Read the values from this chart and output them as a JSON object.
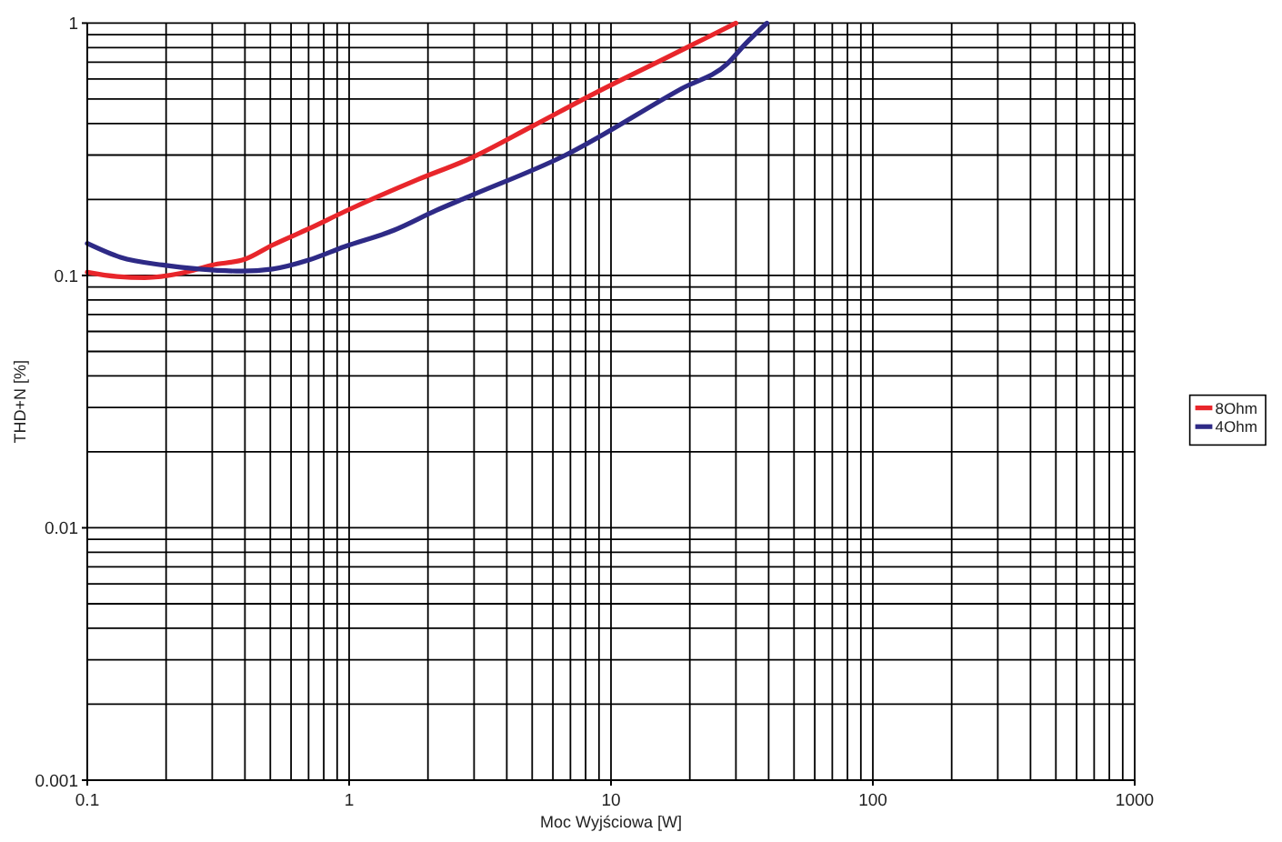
{
  "chart_data": {
    "type": "line",
    "xlabel": "Moc Wyjściowa [W]",
    "ylabel": "THD+N [%]",
    "log": "xy",
    "xlim": [
      0.1,
      1000
    ],
    "ylim": [
      0.001,
      1
    ],
    "xticks": [
      0.1,
      {
        "value": 0.2,
        "label": null
      },
      {
        "value": 0.3,
        "label": null
      },
      {
        "value": 0.4,
        "label": null
      },
      {
        "value": 0.5,
        "label": null
      },
      {
        "value": 0.6,
        "label": null
      },
      {
        "value": 0.7,
        "label": null
      },
      {
        "value": 0.8,
        "label": null
      },
      {
        "value": 0.9,
        "label": null
      },
      1,
      {
        "value": 2,
        "label": null
      },
      {
        "value": 3,
        "label": null
      },
      {
        "value": 4,
        "label": null
      },
      {
        "value": 5,
        "label": null
      },
      {
        "value": 6,
        "label": null
      },
      {
        "value": 7,
        "label": null
      },
      {
        "value": 8,
        "label": null
      },
      {
        "value": 9,
        "label": null
      },
      10,
      {
        "value": 20,
        "label": null
      },
      {
        "value": 30,
        "label": null
      },
      {
        "value": 40,
        "label": null
      },
      {
        "value": 50,
        "label": null
      },
      {
        "value": 60,
        "label": null
      },
      {
        "value": 70,
        "label": null
      },
      {
        "value": 80,
        "label": null
      },
      {
        "value": 90,
        "label": null
      },
      100,
      {
        "value": 200,
        "label": null
      },
      {
        "value": 300,
        "label": null
      },
      {
        "value": 400,
        "label": null
      },
      {
        "value": 500,
        "label": null
      },
      {
        "value": 600,
        "label": null
      },
      {
        "value": 700,
        "label": null
      },
      {
        "value": 800,
        "label": null
      },
      {
        "value": 900,
        "label": null
      },
      1000
    ],
    "yticks": [
      0.001,
      {
        "value": 0.002,
        "label": null
      },
      {
        "value": 0.003,
        "label": null
      },
      {
        "value": 0.004,
        "label": null
      },
      {
        "value": 0.005,
        "label": null
      },
      {
        "value": 0.006,
        "label": null
      },
      {
        "value": 0.007,
        "label": null
      },
      {
        "value": 0.008,
        "label": null
      },
      {
        "value": 0.009,
        "label": null
      },
      0.01,
      {
        "value": 0.02,
        "label": null
      },
      {
        "value": 0.03,
        "label": null
      },
      {
        "value": 0.04,
        "label": null
      },
      {
        "value": 0.05,
        "label": null
      },
      {
        "value": 0.06,
        "label": null
      },
      {
        "value": 0.07,
        "label": null
      },
      {
        "value": 0.08,
        "label": null
      },
      {
        "value": 0.09,
        "label": null
      },
      0.1,
      {
        "value": 0.2,
        "label": null
      },
      {
        "value": 0.3,
        "label": null
      },
      {
        "value": 0.4,
        "label": null
      },
      {
        "value": 0.5,
        "label": null
      },
      {
        "value": 0.6,
        "label": null
      },
      {
        "value": 0.7,
        "label": null
      },
      {
        "value": 0.8,
        "label": null
      },
      {
        "value": 0.9,
        "label": null
      },
      1
    ],
    "grid": true,
    "legend": "right",
    "marker": "none",
    "line_style": "solid",
    "series": [
      {
        "name": "8Ohm",
        "color": "#e8262b",
        "x": [
          0.1,
          0.13,
          0.166,
          0.228,
          0.3,
          0.4,
          0.51,
          0.7,
          0.96,
          1.83,
          2.88,
          5,
          8.6,
          16.3,
          30
        ],
        "values": [
          0.103,
          0.099,
          0.098,
          0.102,
          0.11,
          0.116,
          0.132,
          0.153,
          0.179,
          0.24,
          0.29,
          0.39,
          0.525,
          0.73,
          1.0
        ]
      },
      {
        "name": "4Ohm",
        "color": "#2e2a86",
        "x": [
          0.1,
          0.134,
          0.194,
          0.268,
          0.389,
          0.51,
          0.7,
          0.96,
          1.48,
          2.15,
          2.88,
          6.58,
          18.6,
          27.8,
          32.7,
          39.4
        ],
        "values": [
          0.134,
          0.118,
          0.11,
          0.106,
          0.104,
          0.106,
          0.115,
          0.13,
          0.151,
          0.181,
          0.206,
          0.297,
          0.55,
          0.69,
          0.83,
          1.0
        ]
      }
    ]
  }
}
